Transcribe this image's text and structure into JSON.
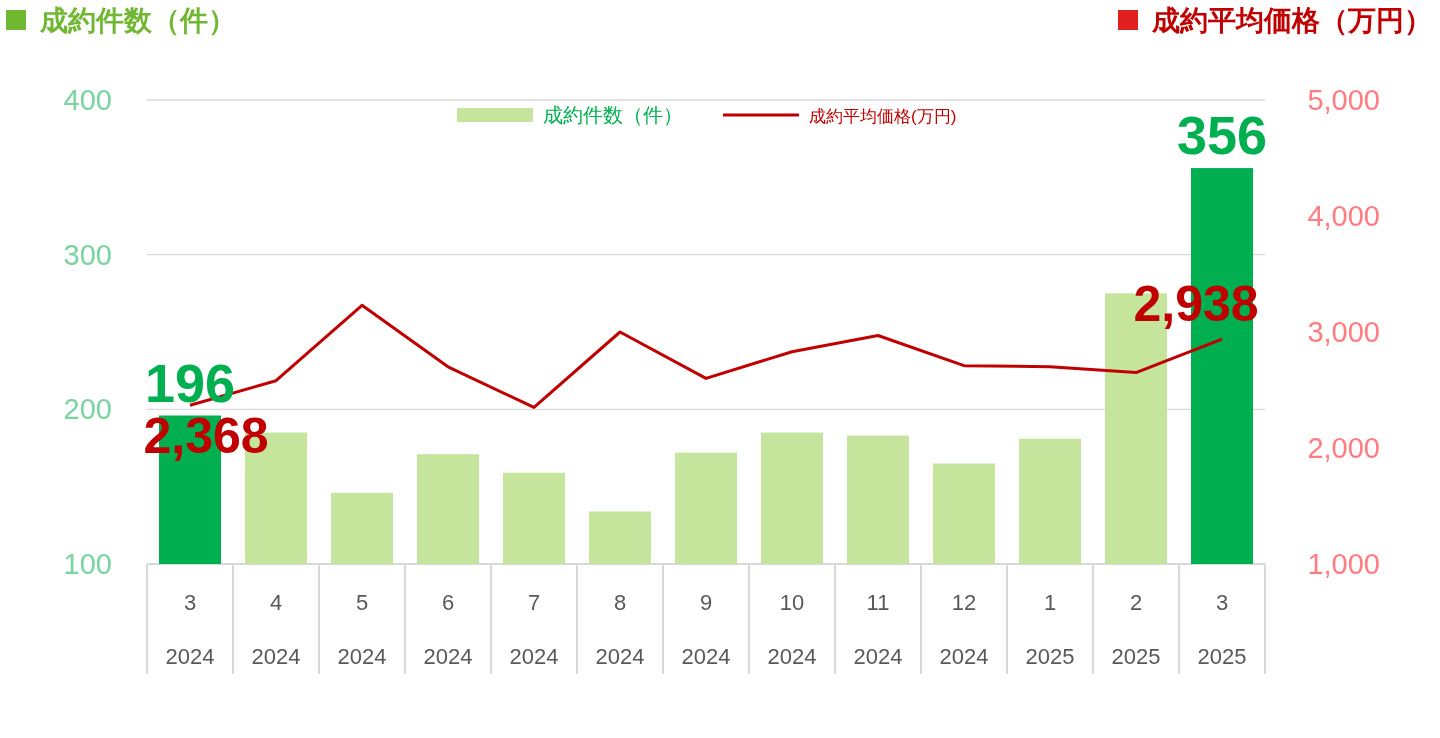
{
  "chart_data": {
    "type": "bar",
    "ylabel": "成約件数（件）",
    "y2label": "成約平均価格（万円）",
    "categories": [
      "3\n2024",
      "4\n2024",
      "5\n2024",
      "6\n2024",
      "7\n2024",
      "8\n2024",
      "9\n2024",
      "10\n2024",
      "11\n2024",
      "12\n2024",
      "1\n2025",
      "2\n2025",
      "3\n2025"
    ],
    "series": [
      {
        "name": "成約件数（件）",
        "color": "#c5e59d",
        "colors": [
          "#00b050",
          "#c5e59d",
          "#c5e59d",
          "#c5e59d",
          "#c5e59d",
          "#c5e59d",
          "#c5e59d",
          "#c5e59d",
          "#c5e59d",
          "#c5e59d",
          "#c5e59d",
          "#c5e59d",
          "#00b050"
        ],
        "values": [
          196,
          185,
          146,
          171,
          159,
          134,
          172,
          185,
          183,
          165,
          181,
          275,
          356
        ],
        "value_labels": [
          "196",
          null,
          null,
          null,
          null,
          null,
          null,
          null,
          null,
          null,
          null,
          null,
          "356"
        ]
      },
      {
        "name": "成約平均価格(万円)",
        "type": "line",
        "axis": "y2",
        "color": "#c00000",
        "values": [
          2368,
          2580,
          3230,
          2700,
          2350,
          3000,
          2600,
          2830,
          2970,
          2710,
          2700,
          2650,
          2938
        ],
        "value_labels": [
          "2,368",
          null,
          null,
          null,
          null,
          null,
          null,
          null,
          null,
          null,
          null,
          null,
          "2,938"
        ]
      }
    ],
    "ylim": [
      100,
      400
    ],
    "yticks": [
      100,
      200,
      300,
      400
    ],
    "y2lim": [
      1000,
      5000
    ],
    "y2ticks": [
      {
        "value": 1000,
        "label": "1,000"
      },
      {
        "value": 2000,
        "label": "2,000"
      },
      {
        "value": 3000,
        "label": "3,000"
      },
      {
        "value": 4000,
        "label": "4,000"
      },
      {
        "value": 5000,
        "label": "5,000"
      }
    ],
    "grid": "y",
    "legend": "top",
    "marker": "none"
  }
}
